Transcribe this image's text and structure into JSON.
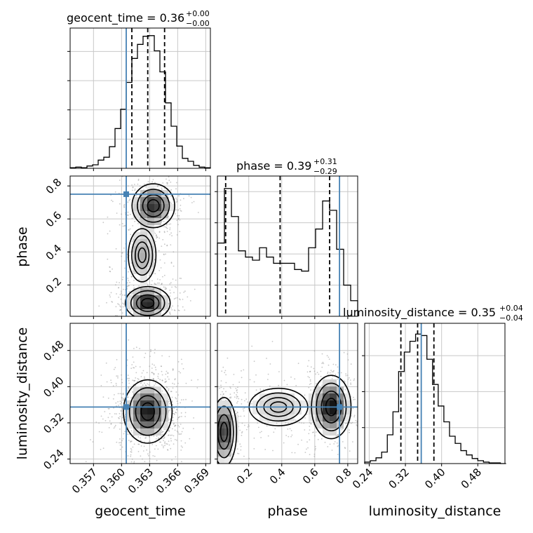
{
  "chart_data": {
    "type": "corner",
    "parameters": [
      "geocent_time",
      "phase",
      "luminosity_distance"
    ],
    "truths": {
      "geocent_time": 0.3605,
      "phase": 0.75,
      "luminosity_distance": 0.355
    },
    "colors": {
      "truth": "#4682b4",
      "hist": "#000000",
      "grid": "#c8c8c8",
      "samples": "#9a9a9a"
    },
    "marginals": [
      {
        "param": "geocent_time",
        "title": "geocent_time = 0.36",
        "title_plus": "+0.00",
        "title_minus": "−0.00",
        "range": [
          0.3545,
          0.3695
        ],
        "quantiles": [
          0.3611,
          0.3628,
          0.3646
        ],
        "edges": [
          0.3545,
          0.3551,
          0.3557,
          0.3563,
          0.3569,
          0.3575,
          0.3581,
          0.3587,
          0.3593,
          0.3599,
          0.3605,
          0.3611,
          0.3617,
          0.3623,
          0.3629,
          0.3635,
          0.3641,
          0.3647,
          0.3653,
          0.3659,
          0.3665,
          0.3671,
          0.3677,
          0.3683,
          0.3689,
          0.3695
        ],
        "counts": [
          1,
          2,
          1,
          4,
          6,
          14,
          19,
          37,
          68,
          101,
          147,
          188,
          212,
          226,
          227,
          201,
          165,
          112,
          72,
          38,
          17,
          12,
          5,
          2,
          1
        ],
        "ymax": 240,
        "yticks": [
          50,
          100,
          150,
          200
        ]
      },
      {
        "param": "phase",
        "title": "phase = 0.39",
        "title_plus": "+0.31",
        "title_minus": "−0.29",
        "range": [
          0.01,
          0.86
        ],
        "quantiles": [
          0.06,
          0.39,
          0.69
        ],
        "edges": [
          0.01,
          0.0525,
          0.095,
          0.1375,
          0.18,
          0.2225,
          0.265,
          0.3075,
          0.35,
          0.3925,
          0.435,
          0.4775,
          0.52,
          0.5625,
          0.605,
          0.6475,
          0.69,
          0.7325,
          0.775,
          0.8175,
          0.86
        ],
        "counts": [
          47,
          82,
          64,
          42,
          38,
          36,
          44,
          38,
          34,
          34,
          34,
          30,
          29,
          44,
          56,
          74,
          68,
          43,
          20,
          10
        ],
        "ymax": 90,
        "yticks": [
          20,
          40,
          60,
          80
        ]
      },
      {
        "param": "luminosity_distance",
        "title": "luminosity_distance = 0.35",
        "title_plus": "+0.04",
        "title_minus": "−0.04",
        "range": [
          0.23,
          0.54
        ],
        "quantiles": [
          0.31,
          0.347,
          0.383
        ],
        "edges": [
          0.23,
          0.2425,
          0.255,
          0.2675,
          0.28,
          0.2925,
          0.305,
          0.3175,
          0.33,
          0.3425,
          0.355,
          0.3675,
          0.38,
          0.3925,
          0.405,
          0.4175,
          0.43,
          0.4425,
          0.455,
          0.4675,
          0.48,
          0.4925,
          0.505,
          0.5175,
          0.53,
          0.5425
        ],
        "counts": [
          2,
          4,
          8,
          16,
          40,
          72,
          128,
          155,
          170,
          180,
          178,
          145,
          110,
          80,
          58,
          38,
          28,
          18,
          12,
          7,
          4,
          2,
          1,
          1,
          0
        ],
        "ymax": 195,
        "yticks": [
          50,
          100,
          150
        ]
      }
    ],
    "axes": {
      "geocent_time": {
        "range": [
          0.3545,
          0.3695
        ],
        "ticks": [
          0.357,
          0.36,
          0.363,
          0.366,
          0.369
        ],
        "tick_labels": [
          "0.357",
          "0.360",
          "0.363",
          "0.366",
          "0.369"
        ]
      },
      "phase": {
        "range": [
          0.01,
          0.86
        ],
        "ticks": [
          0.2,
          0.4,
          0.6,
          0.8
        ],
        "tick_labels": [
          "0.2",
          "0.4",
          "0.6",
          "0.8"
        ]
      },
      "luminosity_distance": {
        "range": [
          0.23,
          0.54
        ],
        "ticks": [
          0.24,
          0.32,
          0.4,
          0.48
        ],
        "tick_labels": [
          "0.24",
          "0.32",
          "0.40",
          "0.48"
        ]
      }
    },
    "joint_2d": [
      {
        "x": "geocent_time",
        "y": "phase",
        "density_modes": [
          {
            "x": 0.3634,
            "y": 0.68,
            "weight": 0.9,
            "sx": 0.0012,
            "sy": 0.07
          },
          {
            "x": 0.3628,
            "y": 0.09,
            "weight": 1.0,
            "sx": 0.0012,
            "sy": 0.05
          },
          {
            "x": 0.3622,
            "y": 0.38,
            "weight": 0.45,
            "sx": 0.0011,
            "sy": 0.12
          }
        ],
        "contour_levels": [
          "0.5σ",
          "1σ",
          "1.5σ",
          "2σ"
        ]
      },
      {
        "x": "geocent_time",
        "y": "luminosity_distance",
        "density_modes": [
          {
            "x": 0.3628,
            "y": 0.345,
            "weight": 1.0,
            "sx": 0.0013,
            "sy": 0.035
          }
        ],
        "contour_levels": [
          "0.5σ",
          "1σ",
          "1.5σ",
          "2σ"
        ]
      },
      {
        "x": "phase",
        "y": "luminosity_distance",
        "density_modes": [
          {
            "x": 0.05,
            "y": 0.3,
            "weight": 0.9,
            "sx": 0.04,
            "sy": 0.04
          },
          {
            "x": 0.7,
            "y": 0.355,
            "weight": 1.0,
            "sx": 0.06,
            "sy": 0.035
          },
          {
            "x": 0.38,
            "y": 0.355,
            "weight": 0.35,
            "sx": 0.15,
            "sy": 0.035
          }
        ],
        "contour_levels": [
          "0.5σ",
          "1σ",
          "1.5σ",
          "2σ"
        ]
      }
    ],
    "grid": true
  }
}
